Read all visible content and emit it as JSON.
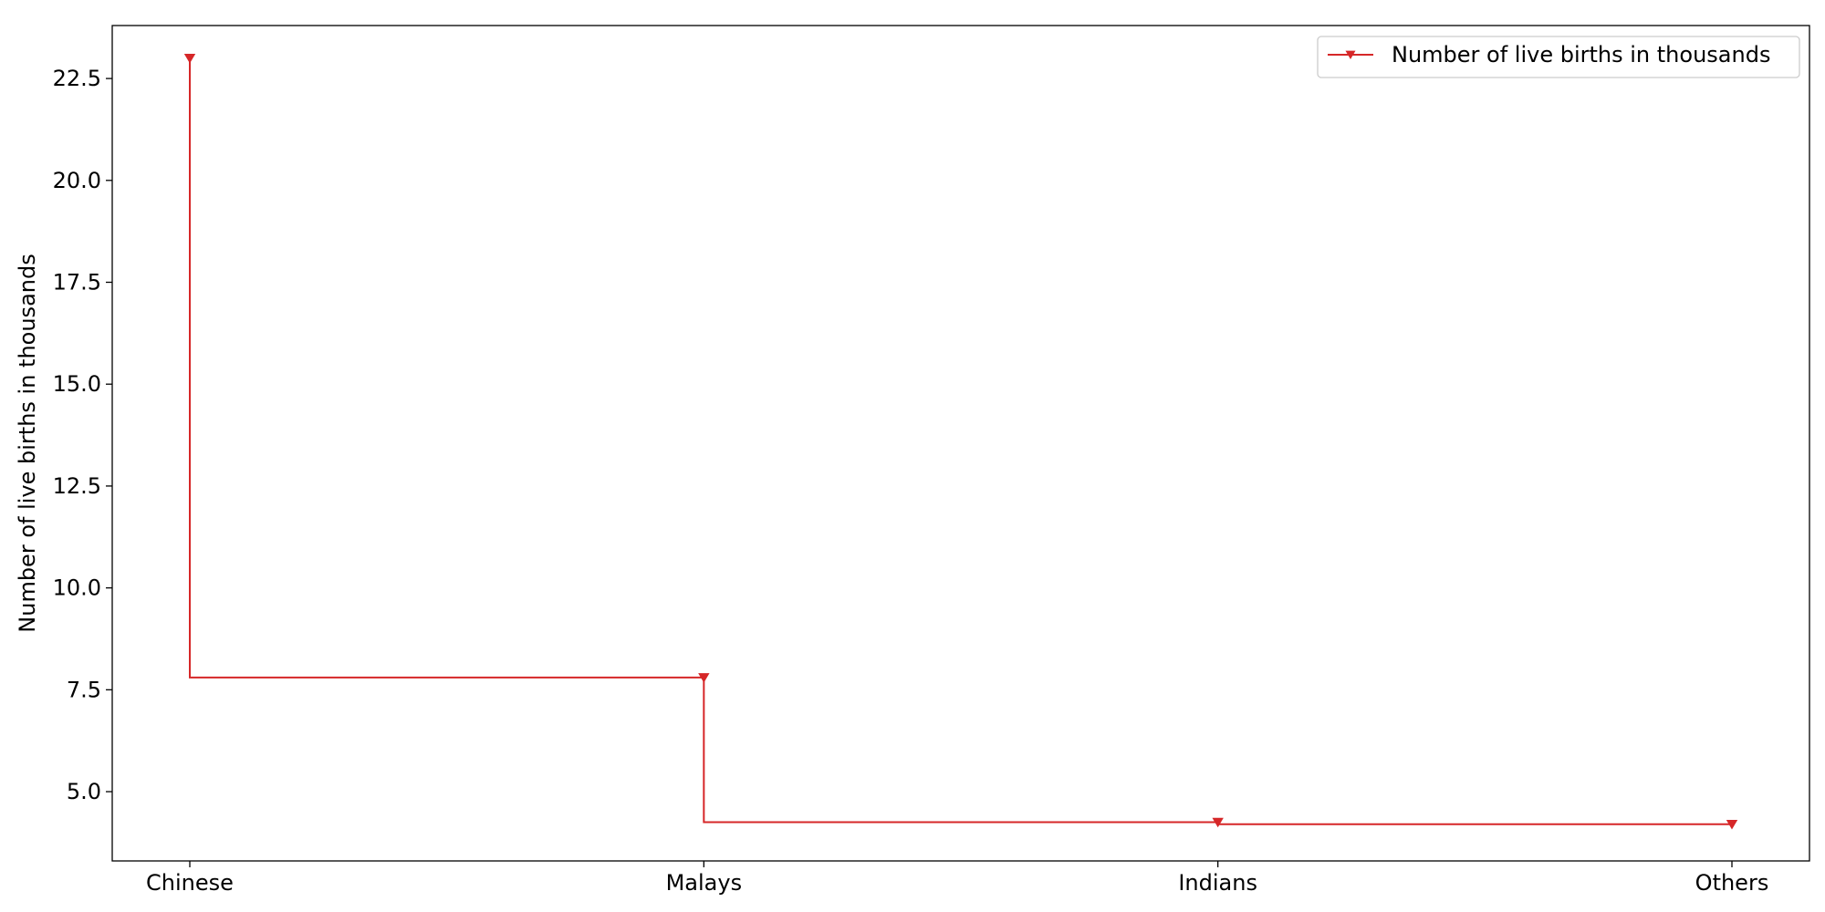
{
  "chart_data": {
    "type": "line",
    "step": "post",
    "categories": [
      "Chinese",
      "Malays",
      "Indians",
      "Others"
    ],
    "series": [
      {
        "name": "Number of live births in thousands",
        "values": [
          23.0,
          7.8,
          4.25,
          4.2
        ],
        "color": "#d62728",
        "marker": "triangle-down"
      }
    ],
    "title": "",
    "xlabel": "",
    "ylabel": "Number of live births in thousands",
    "ylim": [
      3.3,
      23.8
    ],
    "yticks": [
      "5.0",
      "7.5",
      "10.0",
      "12.5",
      "15.0",
      "17.5",
      "20.0",
      "22.5"
    ],
    "grid": false,
    "legend_position": "top-right"
  }
}
